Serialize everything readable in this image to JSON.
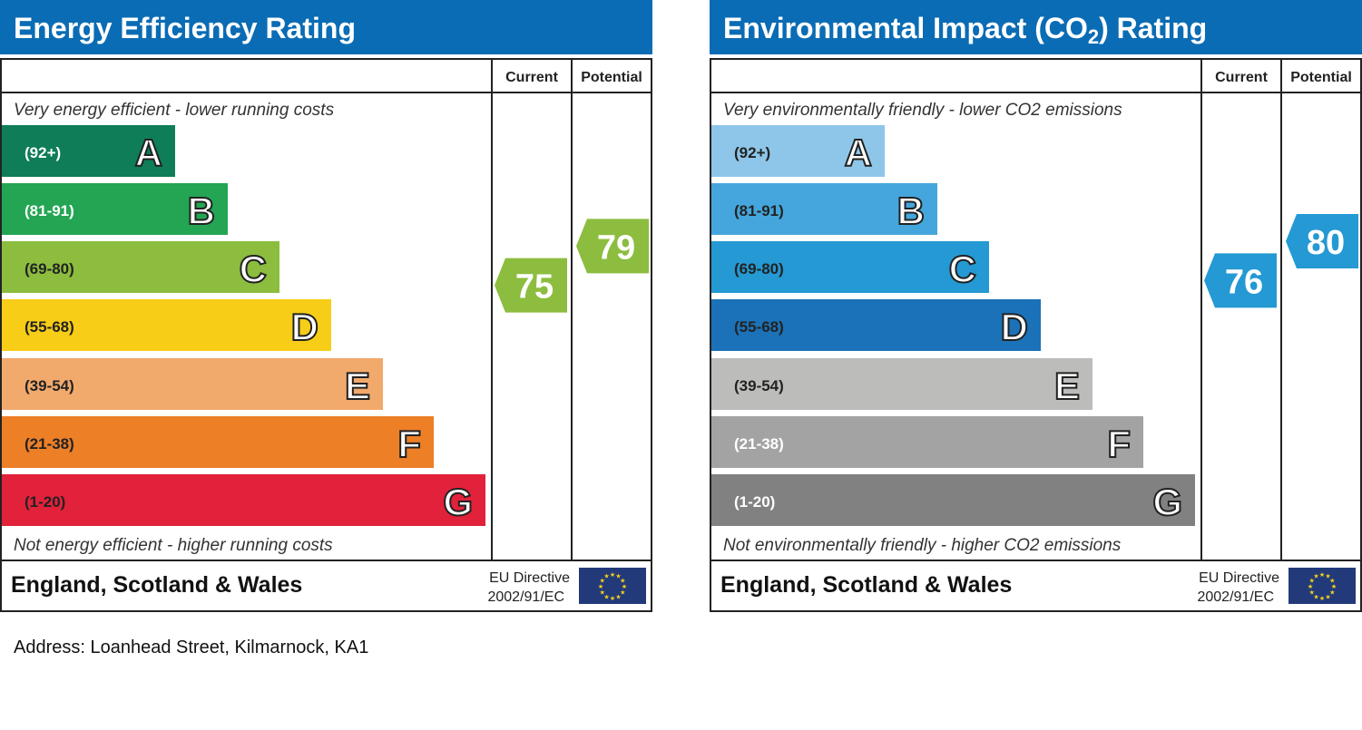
{
  "chart_data": [
    {
      "type": "bar",
      "title": "Energy Efficiency Rating",
      "title_sub": "",
      "columns": [
        "Current",
        "Potential"
      ],
      "top_note": "Very energy efficient - lower running costs",
      "bottom_note": "Not energy efficient - higher running costs",
      "bands": [
        {
          "letter": "A",
          "range": "(92+)",
          "color": "#0f7d57",
          "label_color": "#ffffff"
        },
        {
          "letter": "B",
          "range": "(81-91)",
          "color": "#24a554",
          "label_color": "#ffffff"
        },
        {
          "letter": "C",
          "range": "(69-80)",
          "color": "#8cbd3f",
          "label_color": "#222222"
        },
        {
          "letter": "D",
          "range": "(55-68)",
          "color": "#f7cd17",
          "label_color": "#222222"
        },
        {
          "letter": "E",
          "range": "(39-54)",
          "color": "#f2a96c",
          "label_color": "#222222"
        },
        {
          "letter": "F",
          "range": "(21-38)",
          "color": "#ed7f27",
          "label_color": "#222222"
        },
        {
          "letter": "G",
          "range": "(1-20)",
          "color": "#e2213b",
          "label_color": "#222222"
        }
      ],
      "current": {
        "value": 75,
        "band": "C",
        "color": "#8cbd3f"
      },
      "potential": {
        "value": 79,
        "band": "C",
        "color": "#8cbd3f"
      },
      "footer_region": "England, Scotland & Wales",
      "footer_directive": [
        "EU Directive",
        "2002/91/EC"
      ]
    },
    {
      "type": "bar",
      "title": "Environmental Impact (CO",
      "title_sub": "2",
      "title_end": ") Rating",
      "columns": [
        "Current",
        "Potential"
      ],
      "top_note": "Very environmentally friendly - lower CO2 emissions",
      "bottom_note": "Not environmentally friendly - higher CO2 emissions",
      "bands": [
        {
          "letter": "A",
          "range": "(92+)",
          "color": "#8dc6e8",
          "label_color": "#222222"
        },
        {
          "letter": "B",
          "range": "(81-91)",
          "color": "#44a6dc",
          "label_color": "#222222"
        },
        {
          "letter": "C",
          "range": "(69-80)",
          "color": "#2499d3",
          "label_color": "#222222"
        },
        {
          "letter": "D",
          "range": "(55-68)",
          "color": "#1b72b8",
          "label_color": "#222222"
        },
        {
          "letter": "E",
          "range": "(39-54)",
          "color": "#bcbcbb",
          "label_color": "#222222"
        },
        {
          "letter": "F",
          "range": "(21-38)",
          "color": "#a3a3a3",
          "label_color": "#ffffff"
        },
        {
          "letter": "G",
          "range": "(1-20)",
          "color": "#818181",
          "label_color": "#ffffff"
        }
      ],
      "current": {
        "value": 76,
        "band": "C",
        "color": "#2499d3"
      },
      "potential": {
        "value": 80,
        "band": "C",
        "color": "#2499d3"
      },
      "footer_region": "England, Scotland & Wales",
      "footer_directive": [
        "EU Directive",
        "2002/91/EC"
      ]
    }
  ],
  "header_color": "#0a6cb4",
  "address": "Address: Loanhead Street, Kilmarnock, KA1"
}
